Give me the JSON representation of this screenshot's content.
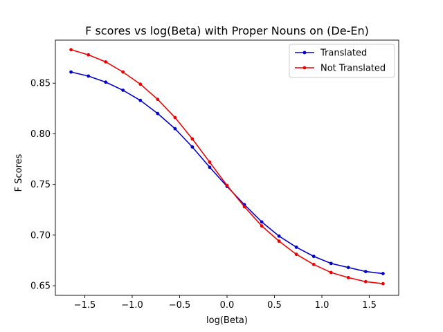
{
  "chart_data": {
    "type": "line",
    "title": "F scores vs log(Beta) with Proper Nouns on (De-En)",
    "xlabel": "log(Beta)",
    "ylabel": "F Scores",
    "xlim": [
      -1.81,
      1.81
    ],
    "ylim": [
      0.6405,
      0.8925
    ],
    "xticks": [
      -1.5,
      -1.0,
      -0.5,
      0.0,
      0.5,
      1.0,
      1.5
    ],
    "xtick_labels": [
      "−1.5",
      "−1.0",
      "−0.5",
      "0.0",
      "0.5",
      "1.0",
      "1.5"
    ],
    "yticks": [
      0.65,
      0.7,
      0.75,
      0.8,
      0.85
    ],
    "ytick_labels": [
      "0.65",
      "0.70",
      "0.75",
      "0.80",
      "0.85"
    ],
    "grid": false,
    "legend_position": "top-right",
    "x": [
      -1.645,
      -1.462,
      -1.279,
      -1.097,
      -0.914,
      -0.731,
      -0.548,
      -0.366,
      -0.183,
      0.0,
      0.183,
      0.366,
      0.548,
      0.731,
      0.914,
      1.097,
      1.279,
      1.462,
      1.645
    ],
    "series": [
      {
        "name": "Translated",
        "color": "#0000cc",
        "values": [
          0.861,
          0.857,
          0.851,
          0.843,
          0.833,
          0.82,
          0.805,
          0.787,
          0.767,
          0.748,
          0.73,
          0.713,
          0.699,
          0.688,
          0.679,
          0.672,
          0.668,
          0.664,
          0.662
        ]
      },
      {
        "name": "Not Translated",
        "color": "#ee0000",
        "values": [
          0.883,
          0.878,
          0.871,
          0.861,
          0.849,
          0.834,
          0.816,
          0.795,
          0.772,
          0.749,
          0.728,
          0.709,
          0.694,
          0.681,
          0.671,
          0.663,
          0.658,
          0.654,
          0.652
        ]
      }
    ]
  }
}
